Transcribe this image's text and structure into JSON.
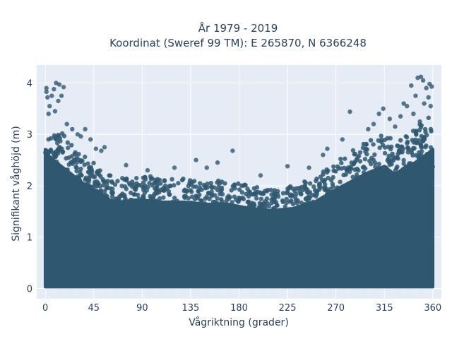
{
  "chart_data": {
    "type": "scatter",
    "title_line1": "År 1979 - 2019",
    "title_line2": "Koordinat (Sweref 99 TM): E 265870, N 6366248",
    "xlabel": "Vågriktning (grader)",
    "ylabel": "Signifikant våghöjd (m)",
    "xlim": [
      -8,
      368
    ],
    "ylim": [
      -0.2,
      4.35
    ],
    "xticks": [
      0,
      45,
      90,
      135,
      180,
      225,
      270,
      315,
      360
    ],
    "yticks": [
      0,
      1,
      2,
      3,
      4
    ],
    "grid": true,
    "marker_color": "#2f5870",
    "plot_background": "#e5ecf6",
    "grid_color": "#ffffff",
    "upper_envelope": [
      {
        "x": 0,
        "y": 3.3
      },
      {
        "x": 5,
        "y": 3.1
      },
      {
        "x": 10,
        "y": 3.0
      },
      {
        "x": 15,
        "y": 2.9
      },
      {
        "x": 20,
        "y": 2.8
      },
      {
        "x": 30,
        "y": 2.6
      },
      {
        "x": 40,
        "y": 2.4
      },
      {
        "x": 50,
        "y": 2.3
      },
      {
        "x": 60,
        "y": 2.1
      },
      {
        "x": 70,
        "y": 2.05
      },
      {
        "x": 90,
        "y": 2.1
      },
      {
        "x": 110,
        "y": 2.05
      },
      {
        "x": 130,
        "y": 2.05
      },
      {
        "x": 150,
        "y": 2.0
      },
      {
        "x": 170,
        "y": 2.0
      },
      {
        "x": 190,
        "y": 1.9
      },
      {
        "x": 210,
        "y": 1.85
      },
      {
        "x": 230,
        "y": 1.9
      },
      {
        "x": 250,
        "y": 2.05
      },
      {
        "x": 270,
        "y": 2.35
      },
      {
        "x": 285,
        "y": 2.55
      },
      {
        "x": 300,
        "y": 2.75
      },
      {
        "x": 315,
        "y": 2.9
      },
      {
        "x": 325,
        "y": 2.7
      },
      {
        "x": 335,
        "y": 2.9
      },
      {
        "x": 345,
        "y": 3.0
      },
      {
        "x": 355,
        "y": 3.2
      },
      {
        "x": 360,
        "y": 3.3
      }
    ],
    "outliers": [
      {
        "x": 1,
        "y": 3.9
      },
      {
        "x": 1,
        "y": 3.83
      },
      {
        "x": 2,
        "y": 3.72
      },
      {
        "x": 4,
        "y": 3.55
      },
      {
        "x": 6,
        "y": 3.75
      },
      {
        "x": 8,
        "y": 3.88
      },
      {
        "x": 10,
        "y": 4.0
      },
      {
        "x": 13,
        "y": 3.97
      },
      {
        "x": 15,
        "y": 3.75
      },
      {
        "x": 17,
        "y": 3.92
      },
      {
        "x": 12,
        "y": 3.65
      },
      {
        "x": 3,
        "y": 3.4
      },
      {
        "x": 9,
        "y": 3.45
      },
      {
        "x": 20,
        "y": 3.2
      },
      {
        "x": 25,
        "y": 3.1
      },
      {
        "x": 30,
        "y": 3.0
      },
      {
        "x": 33,
        "y": 2.96
      },
      {
        "x": 37,
        "y": 3.1
      },
      {
        "x": 42,
        "y": 2.9
      },
      {
        "x": 47,
        "y": 2.72
      },
      {
        "x": 52,
        "y": 2.68
      },
      {
        "x": 55,
        "y": 2.75
      },
      {
        "x": 75,
        "y": 2.4
      },
      {
        "x": 95,
        "y": 2.3
      },
      {
        "x": 120,
        "y": 2.35
      },
      {
        "x": 140,
        "y": 2.5
      },
      {
        "x": 150,
        "y": 2.35
      },
      {
        "x": 160,
        "y": 2.45
      },
      {
        "x": 174,
        "y": 2.68
      },
      {
        "x": 200,
        "y": 2.2
      },
      {
        "x": 225,
        "y": 2.38
      },
      {
        "x": 245,
        "y": 2.35
      },
      {
        "x": 258,
        "y": 2.6
      },
      {
        "x": 262,
        "y": 2.72
      },
      {
        "x": 276,
        "y": 2.9
      },
      {
        "x": 283,
        "y": 3.44
      },
      {
        "x": 300,
        "y": 3.1
      },
      {
        "x": 305,
        "y": 3.2
      },
      {
        "x": 310,
        "y": 3.4
      },
      {
        "x": 314,
        "y": 3.5
      },
      {
        "x": 320,
        "y": 3.3
      },
      {
        "x": 325,
        "y": 3.15
      },
      {
        "x": 330,
        "y": 3.35
      },
      {
        "x": 333,
        "y": 3.6
      },
      {
        "x": 336,
        "y": 3.55
      },
      {
        "x": 340,
        "y": 3.95
      },
      {
        "x": 344,
        "y": 3.75
      },
      {
        "x": 346,
        "y": 4.1
      },
      {
        "x": 349,
        "y": 4.12
      },
      {
        "x": 351,
        "y": 4.05
      },
      {
        "x": 352,
        "y": 3.6
      },
      {
        "x": 354,
        "y": 3.9
      },
      {
        "x": 357,
        "y": 3.98
      },
      {
        "x": 359,
        "y": 3.93
      },
      {
        "x": 356,
        "y": 3.72
      },
      {
        "x": 342,
        "y": 3.4
      },
      {
        "x": 348,
        "y": 3.25
      },
      {
        "x": 358,
        "y": 3.55
      }
    ]
  }
}
